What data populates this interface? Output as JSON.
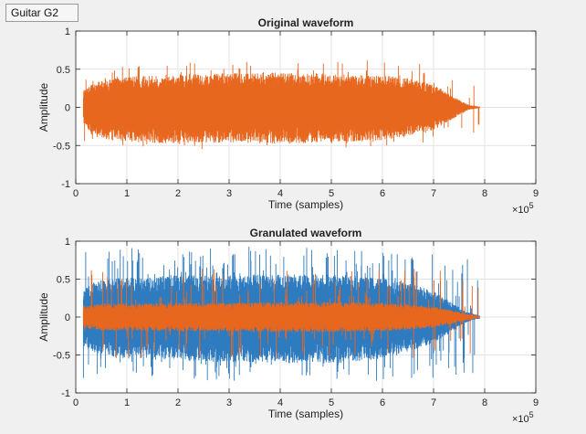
{
  "label_box": {
    "text": "Guitar G2"
  },
  "colors": {
    "background": "#f0f0f0",
    "axes_bg": "#ffffff",
    "grid": "#e3e3e3",
    "axis": "#262626",
    "series_orange": "#e8671f",
    "series_blue": "#2f7bbf"
  },
  "chart_data": [
    {
      "type": "line",
      "title": "Original waveform",
      "xlabel": "Time (samples)",
      "ylabel": "Amplitude",
      "xlim": [
        0,
        9
      ],
      "ylim": [
        -1,
        1
      ],
      "xticks": [
        "0",
        "1",
        "2",
        "3",
        "4",
        "5",
        "6",
        "7",
        "8",
        "9"
      ],
      "yticks": [
        "-1",
        "-0.5",
        "0",
        "0.5",
        "1"
      ],
      "x_exponent_base": "×10",
      "x_exponent_power": "5",
      "grid": true,
      "series": [
        {
          "color": "#e8671f",
          "x_start": 0.15,
          "x_end": 7.9,
          "envelope_x": [
            0.15,
            0.3,
            0.5,
            1.0,
            1.5,
            2.0,
            2.5,
            3.0,
            3.5,
            4.0,
            4.5,
            5.0,
            5.5,
            6.0,
            6.5,
            7.0,
            7.3,
            7.5,
            7.7,
            7.9
          ],
          "envelope_pos": [
            0.22,
            0.3,
            0.35,
            0.4,
            0.42,
            0.43,
            0.44,
            0.45,
            0.45,
            0.46,
            0.45,
            0.44,
            0.43,
            0.42,
            0.38,
            0.3,
            0.18,
            0.1,
            0.03,
            0.01
          ],
          "envelope_neg": [
            -0.22,
            -0.35,
            -0.42,
            -0.45,
            -0.47,
            -0.47,
            -0.47,
            -0.47,
            -0.47,
            -0.48,
            -0.47,
            -0.46,
            -0.45,
            -0.43,
            -0.38,
            -0.3,
            -0.18,
            -0.1,
            -0.03,
            -0.01
          ],
          "peak_max": 0.76,
          "peak_min": -0.65
        }
      ]
    },
    {
      "type": "line",
      "title": "Granulated waveform",
      "xlabel": "Time (samples)",
      "ylabel": "Amplitude",
      "xlim": [
        0,
        9
      ],
      "ylim": [
        -1,
        1
      ],
      "xticks": [
        "0",
        "1",
        "2",
        "3",
        "4",
        "5",
        "6",
        "7",
        "8",
        "9"
      ],
      "yticks": [
        "-1",
        "-0.5",
        "0",
        "0.5",
        "1"
      ],
      "x_exponent_base": "×10",
      "x_exponent_power": "5",
      "grid": true,
      "series": [
        {
          "color": "#2f7bbf",
          "x_start": 0.15,
          "x_end": 7.9,
          "envelope_x": [
            0.15,
            0.5,
            1.0,
            2.0,
            3.0,
            4.0,
            5.0,
            6.0,
            6.5,
            7.0,
            7.3,
            7.6,
            7.9
          ],
          "envelope_pos": [
            0.4,
            0.5,
            0.52,
            0.55,
            0.55,
            0.56,
            0.56,
            0.52,
            0.45,
            0.35,
            0.22,
            0.08,
            0.02
          ],
          "envelope_neg": [
            -0.4,
            -0.5,
            -0.55,
            -0.58,
            -0.6,
            -0.6,
            -0.62,
            -0.55,
            -0.45,
            -0.35,
            -0.22,
            -0.08,
            -0.02
          ],
          "peak_max": 1.0,
          "peak_min": -0.95
        },
        {
          "color": "#e8671f",
          "x_start": 0.15,
          "x_end": 7.9,
          "envelope_x": [
            0.15,
            0.5,
            1.0,
            2.0,
            3.0,
            4.0,
            5.0,
            6.0,
            6.5,
            7.0,
            7.3,
            7.6,
            7.9
          ],
          "envelope_pos": [
            0.15,
            0.18,
            0.18,
            0.19,
            0.19,
            0.2,
            0.2,
            0.19,
            0.17,
            0.14,
            0.1,
            0.05,
            0.01
          ],
          "envelope_neg": [
            -0.15,
            -0.18,
            -0.18,
            -0.19,
            -0.19,
            -0.2,
            -0.2,
            -0.19,
            -0.17,
            -0.14,
            -0.1,
            -0.05,
            -0.01
          ],
          "peak_max": 1.0,
          "peak_min": -0.95
        }
      ]
    }
  ]
}
